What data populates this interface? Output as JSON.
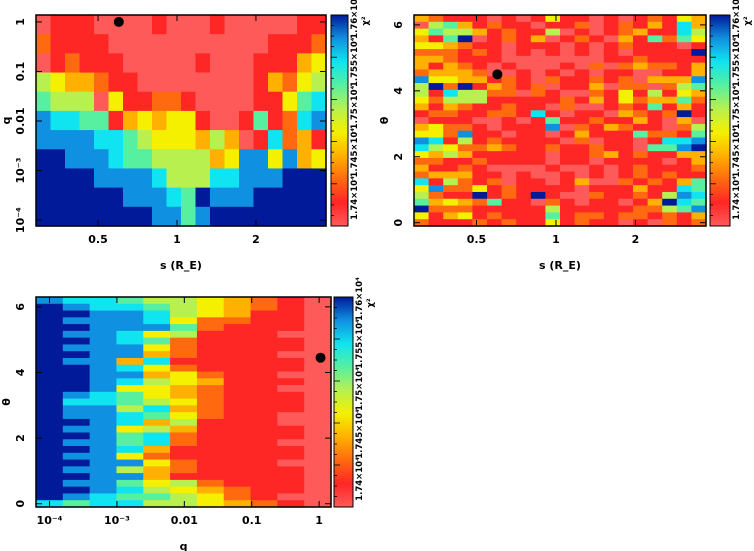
{
  "colormap": [
    "#ff5a5a",
    "#ff2626",
    "#ff6a10",
    "#ffb000",
    "#f4f000",
    "#b8f050",
    "#56f0a0",
    "#10e4f0",
    "#1090e0",
    "#001a9a"
  ],
  "colorbar": {
    "label": "χ²",
    "ticks": [
      "1.74×10⁴",
      "1.745×10⁴",
      "1.75×10⁴",
      "1.755×10⁴",
      "1.76×10⁴"
    ]
  },
  "chart_data": [
    {
      "type": "heatmap",
      "xlabel": "s (R_E)",
      "ylabel": "q",
      "xscale": "log",
      "yscale": "log",
      "xlim": [
        0.29,
        3.7
      ],
      "ylim": [
        7.6e-05,
        1.38
      ],
      "xticks": [
        {
          "v": 0.5,
          "label": "0.5"
        },
        {
          "v": 1,
          "label": "1"
        },
        {
          "v": 2,
          "label": "2"
        }
      ],
      "yticks": [
        {
          "v": 1,
          "label": "1"
        },
        {
          "v": 0.1,
          "label": "0.1"
        },
        {
          "v": 0.01,
          "label": "0.01"
        },
        {
          "v": 0.001,
          "label": "10⁻³"
        },
        {
          "v": 0.0001,
          "label": "10⁻⁴"
        }
      ],
      "grid_levels_top_to_bottom": [
        "01110000100010000011",
        "21111000000000001112",
        "01211100000100011134",
        "54332110000000013245",
        "65550411221000011467",
        "87766134344100161278",
        "88887765444353017231",
        "99888766555534884834",
        "99998888755577888999",
        "99999988876988899999",
        "99999999886899999999"
      ],
      "best_fit": {
        "x": 0.6,
        "y": 1.0
      }
    },
    {
      "type": "heatmap",
      "xlabel": "s (R_E)",
      "ylabel": "θ",
      "xscale": "log",
      "yscale": "linear",
      "xlim": [
        0.29,
        3.7
      ],
      "ylim": [
        -0.1,
        6.3
      ],
      "xticks": [
        {
          "v": 0.5,
          "label": "0.5"
        },
        {
          "v": 1,
          "label": "1"
        },
        {
          "v": 2,
          "label": "2"
        }
      ],
      "yticks": [
        {
          "v": 0,
          "label": "0"
        },
        {
          "v": 2,
          "label": "2"
        },
        {
          "v": 4,
          "label": "4"
        },
        {
          "v": 6,
          "label": "6"
        }
      ],
      "grid_levels_top_to_bottom": [
        "32111010141101012143",
        "05631211011201213173",
        "46553121150101231175",
        "31690121301210316264",
        "44321101110101211101",
        "22212101010101011119",
        "33211100000001121111",
        "31321010001020232213",
        "23332001010101100113",
        "84433121021121203338",
        "59291321201130220256",
        "51755220210021415143",
        "42555111112131423362",
        "31321121102001216131",
        "12211221710110321291",
        "01110010161121131030",
        "34221011180213211025",
        "44281101101311162216",
        "87151211110201101778",
        "75422321121121106689",
        "43531111101123121133",
        "22112111101101111013",
        "31121000010010121112",
        "23331101001010121211",
        "71521201101300212136",
        "48224121111011131176",
        "52119121910021121587",
        "63432611021011013976",
        "92221111151111122568",
        "41341211161221221213",
        "21112121141211010212"
      ],
      "best_fit": {
        "x": 0.6,
        "y": 4.5
      }
    },
    {
      "type": "heatmap",
      "xlabel": "q",
      "ylabel": "θ",
      "xscale": "log",
      "yscale": "linear",
      "xlim": [
        6.3e-05,
        1.5
      ],
      "ylim": [
        -0.1,
        6.3
      ],
      "xticks": [
        {
          "v": 0.0001,
          "label": "10⁻⁴"
        },
        {
          "v": 0.001,
          "label": "10⁻³"
        },
        {
          "v": 0.01,
          "label": "0.01"
        },
        {
          "v": 0.1,
          "label": "0.1"
        },
        {
          "v": 1,
          "label": "1"
        }
      ],
      "yticks": [
        {
          "v": 0,
          "label": "0"
        },
        {
          "v": 2,
          "label": "2"
        },
        {
          "v": 4,
          "label": "4"
        },
        {
          "v": 6,
          "label": "6"
        }
      ],
      "grid_levels_top_to_bottom": [
        "87765543210",
        "98776543210",
        "99887543110",
        "98887422110",
        "99888621110",
        "98874511100",
        "99876211110",
        "98884211110",
        "99883211100",
        "98837111110",
        "99874211110",
        "99883421100",
        "99875431110",
        "99844321100",
        "98764321110",
        "97765421110",
        "98857321110",
        "98876421100",
        "99873511100",
        "98845311110",
        "99867211110",
        "98867211100",
        "99873111110",
        "98842111110",
        "99884211100",
        "98853211110",
        "99883111110",
        "98864521110",
        "99875432110",
        "98766542100",
        "76775543210"
      ],
      "best_fit": {
        "x": 1.05,
        "y": 4.45
      }
    }
  ]
}
